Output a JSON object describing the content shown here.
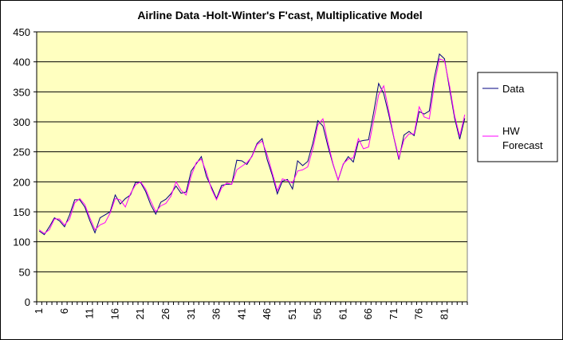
{
  "chart_data": {
    "type": "line",
    "title": "Airline Data -Holt-Winter's F'cast, Multiplicative Model",
    "xlabel": "",
    "ylabel": "",
    "ylim": [
      0,
      450
    ],
    "yticks": [
      "0",
      "50",
      "100",
      "150",
      "200",
      "250",
      "300",
      "350",
      "400",
      "450"
    ],
    "xlim": [
      1,
      85
    ],
    "xticks": [
      "1",
      "6",
      "11",
      "16",
      "21",
      "26",
      "31",
      "36",
      "41",
      "46",
      "51",
      "56",
      "61",
      "66",
      "71",
      "76",
      "81"
    ],
    "grid": "horizontal",
    "legend_position": "right",
    "plot_background": "#ffffc0",
    "x": [
      1,
      2,
      3,
      4,
      5,
      6,
      7,
      8,
      9,
      10,
      11,
      12,
      13,
      14,
      15,
      16,
      17,
      18,
      19,
      20,
      21,
      22,
      23,
      24,
      25,
      26,
      27,
      28,
      29,
      30,
      31,
      32,
      33,
      34,
      35,
      36,
      37,
      38,
      39,
      40,
      41,
      42,
      43,
      44,
      45,
      46,
      47,
      48,
      49,
      50,
      51,
      52,
      53,
      54,
      55,
      56,
      57,
      58,
      59,
      60,
      61,
      62,
      63,
      64,
      65,
      66,
      67,
      68,
      69,
      70,
      71,
      72,
      73,
      74,
      75,
      76,
      77,
      78,
      79,
      80,
      81,
      82,
      83,
      84,
      85
    ],
    "series": [
      {
        "name": "Data",
        "color": "#000080",
        "values": [
          118,
          112,
          125,
          140,
          135,
          125,
          145,
          170,
          170,
          158,
          135,
          115,
          140,
          145,
          150,
          178,
          163,
          172,
          178,
          199,
          199,
          184,
          162,
          146,
          166,
          171,
          180,
          193,
          181,
          183,
          218,
          230,
          242,
          209,
          191,
          172,
          194,
          196,
          196,
          236,
          235,
          229,
          243,
          264,
          272,
          237,
          211,
          180,
          201,
          204,
          188,
          235,
          227,
          234,
          264,
          302,
          293,
          259,
          229,
          203,
          229,
          242,
          233,
          267,
          269,
          270,
          315,
          364,
          347,
          312,
          274,
          237,
          278,
          284,
          277,
          317,
          313,
          318,
          374,
          413,
          405,
          355,
          306,
          271,
          306
        ]
      },
      {
        "name": "HW Forecast",
        "color": "#ff00ff",
        "values": [
          120,
          114,
          120,
          138,
          138,
          128,
          138,
          165,
          172,
          162,
          140,
          120,
          128,
          132,
          148,
          172,
          170,
          158,
          180,
          195,
          200,
          188,
          168,
          150,
          160,
          164,
          176,
          200,
          186,
          178,
          210,
          232,
          238,
          216,
          188,
          170,
          190,
          198,
          196,
          220,
          226,
          232,
          242,
          262,
          268,
          245,
          215,
          185,
          205,
          202,
          198,
          218,
          220,
          225,
          255,
          295,
          305,
          265,
          230,
          203,
          230,
          238,
          240,
          272,
          255,
          258,
          302,
          345,
          360,
          318,
          275,
          240,
          270,
          280,
          280,
          325,
          308,
          305,
          362,
          405,
          402,
          360,
          310,
          276,
          312
        ]
      }
    ]
  }
}
